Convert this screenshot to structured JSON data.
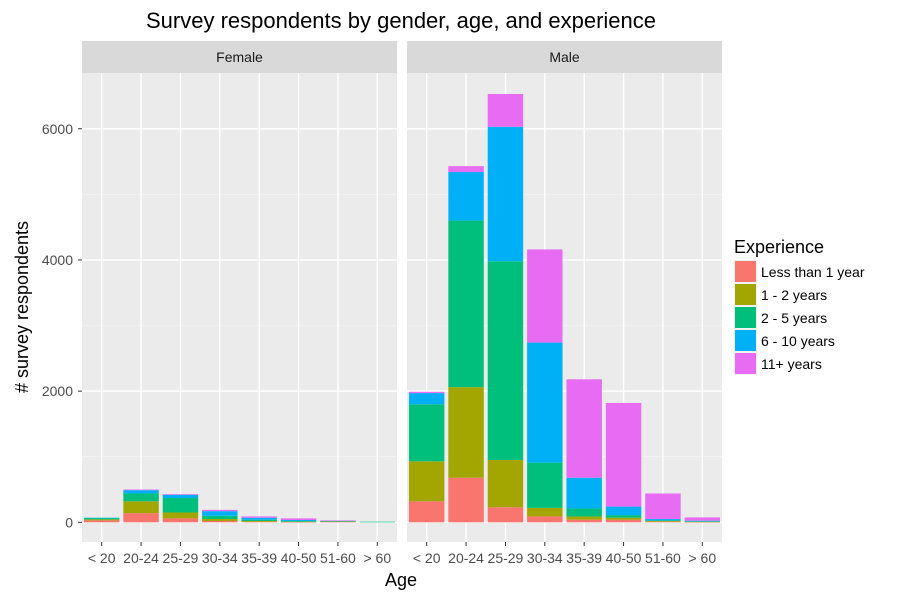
{
  "chart_data": {
    "type": "bar",
    "stacked": true,
    "title": "Survey respondents by gender, age, and experience",
    "xlabel": "Age",
    "ylabel": "# survey respondents",
    "ylim": [
      -300,
      6850
    ],
    "yticks": [
      0,
      2000,
      4000,
      6000
    ],
    "ytick_labels": [
      "0",
      "2000",
      "4000",
      "6000"
    ],
    "categories": [
      "< 20",
      "20-24",
      "25-29",
      "30-34",
      "35-39",
      "40-50",
      "51-60",
      "> 60"
    ],
    "grid": true,
    "legend": {
      "title": "Experience",
      "placement": "right"
    },
    "series": [
      {
        "name": "Less than 1 year",
        "color": "#F8766D"
      },
      {
        "name": "1 - 2 years",
        "color": "#A3A500"
      },
      {
        "name": "2 - 5 years",
        "color": "#00BF7D"
      },
      {
        "name": "6 - 10 years",
        "color": "#00B0F6"
      },
      {
        "name": "11+ years",
        "color": "#E76BF3"
      }
    ],
    "panels": [
      {
        "label": "Female",
        "values": [
          [
            30,
            15,
            20,
            5,
            0
          ],
          [
            140,
            180,
            120,
            50,
            10
          ],
          [
            60,
            90,
            220,
            50,
            10
          ],
          [
            20,
            30,
            50,
            70,
            20
          ],
          [
            10,
            10,
            20,
            30,
            20
          ],
          [
            5,
            5,
            10,
            15,
            25
          ],
          [
            10,
            5,
            5,
            5,
            5
          ],
          [
            0,
            0,
            10,
            0,
            0
          ]
        ]
      },
      {
        "label": "Male",
        "values": [
          [
            320,
            610,
            870,
            170,
            20
          ],
          [
            680,
            1380,
            2540,
            740,
            90
          ],
          [
            230,
            720,
            3030,
            2050,
            500
          ],
          [
            90,
            130,
            690,
            1830,
            1420
          ],
          [
            40,
            50,
            120,
            470,
            1500
          ],
          [
            40,
            30,
            40,
            130,
            1580
          ],
          [
            10,
            10,
            10,
            20,
            390
          ],
          [
            5,
            5,
            5,
            10,
            50
          ]
        ]
      }
    ]
  }
}
